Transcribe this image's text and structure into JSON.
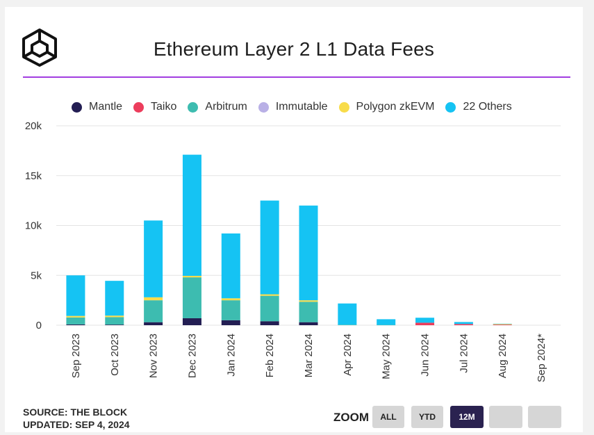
{
  "title": "Ethereum Layer 2 L1 Data Fees",
  "source_line": "SOURCE: THE BLOCK",
  "updated_line": "UPDATED: SEP 4, 2024",
  "zoom": {
    "label": "ZOOM",
    "buttons": [
      {
        "label": "ALL",
        "active": false
      },
      {
        "label": "YTD",
        "active": false
      },
      {
        "label": "12M",
        "active": true
      },
      {
        "label": "",
        "active": false
      },
      {
        "label": "",
        "active": false
      }
    ]
  },
  "colors": {
    "accent_rule": "#a23de0",
    "zoom_active": "#2a2250"
  },
  "chart_data": {
    "type": "bar",
    "stacked": true,
    "title": "Ethereum Layer 2 L1 Data Fees",
    "categories": [
      "Sep 2023",
      "Oct 2023",
      "Nov 2023",
      "Dec 2023",
      "Jan 2024",
      "Feb 2024",
      "Mar 2024",
      "Apr 2024",
      "May 2024",
      "Jun 2024",
      "Jul 2024",
      "Aug 2024",
      "Sep 2024*"
    ],
    "ylim": [
      0,
      20000
    ],
    "yticks": [
      0,
      5000,
      10000,
      15000,
      20000
    ],
    "ytick_labels": [
      "0",
      "5k",
      "10k",
      "15k",
      "20k"
    ],
    "grid": true,
    "legend_position": "top",
    "series": [
      {
        "name": "Mantle",
        "color": "#231e53",
        "values": [
          80,
          60,
          300,
          700,
          500,
          400,
          300,
          0,
          0,
          0,
          0,
          0,
          0
        ]
      },
      {
        "name": "Taiko",
        "color": "#ec3d5c",
        "values": [
          0,
          0,
          0,
          0,
          0,
          0,
          0,
          0,
          0,
          250,
          120,
          60,
          0
        ]
      },
      {
        "name": "Arbitrum",
        "color": "#3dbcb0",
        "values": [
          700,
          750,
          2200,
          4100,
          2000,
          2550,
          2050,
          50,
          30,
          0,
          0,
          0,
          0
        ]
      },
      {
        "name": "Immutable",
        "color": "#b9b0e6",
        "values": [
          0,
          0,
          0,
          0,
          0,
          0,
          0,
          0,
          0,
          0,
          0,
          0,
          0
        ]
      },
      {
        "name": "Polygon zkEVM",
        "color": "#f8dc4a",
        "values": [
          150,
          150,
          300,
          150,
          200,
          150,
          150,
          0,
          0,
          0,
          0,
          60,
          0
        ]
      },
      {
        "name": "22 Others",
        "color": "#15c3f3",
        "values": [
          4070,
          3490,
          7700,
          12150,
          6500,
          9400,
          9500,
          2130,
          570,
          500,
          200,
          30,
          0
        ]
      }
    ]
  }
}
